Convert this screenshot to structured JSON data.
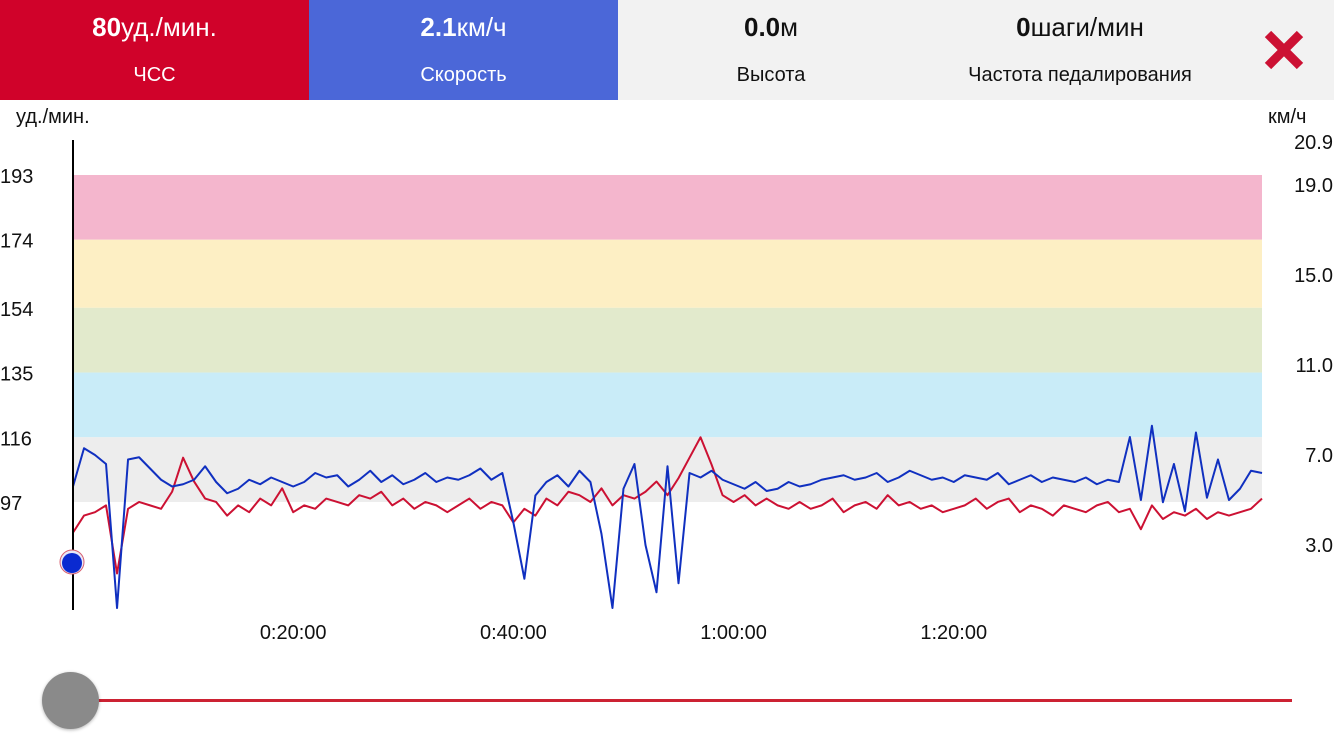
{
  "header": {
    "hr": {
      "value": "80",
      "unit": "уд./мин.",
      "label": "ЧСС",
      "color": "#d0022a"
    },
    "speed": {
      "value": "2.1",
      "unit": "км/ч",
      "label": "Скорость",
      "color": "#4b67d8"
    },
    "altitude": {
      "value": "0.0",
      "unit": "м",
      "label": "Высота"
    },
    "cadence": {
      "value": "0",
      "unit": "шаги/мин",
      "label": "Частота педалирования"
    },
    "close_icon": "close-x-icon"
  },
  "chart_data": {
    "type": "line",
    "left_axis": {
      "label": "уд./мин.",
      "ticks": [
        "193",
        "174",
        "154",
        "135",
        "116",
        "97"
      ],
      "range": [
        60,
        206
      ]
    },
    "right_axis": {
      "label": "км/ч",
      "ticks": [
        "20.9",
        "19.0",
        "15.0",
        "11.0",
        "7.0",
        "3.0"
      ],
      "range": [
        0,
        21
      ]
    },
    "x_ticks": [
      "0:20:00",
      "0:40:00",
      "1:00:00",
      "1:20:00"
    ],
    "x_range_min": [
      0,
      108
    ],
    "zones": [
      {
        "from": 174,
        "to": 193,
        "color": "#f4b6cd"
      },
      {
        "from": 154,
        "to": 174,
        "color": "#fdefc4"
      },
      {
        "from": 135,
        "to": 154,
        "color": "#e2eacc"
      },
      {
        "from": 116,
        "to": 135,
        "color": "#c9ecf8"
      },
      {
        "from": 97,
        "to": 116,
        "color": "#ededed"
      }
    ],
    "series": [
      {
        "name": "ЧСС",
        "color": "#cc1133",
        "values": [
          88,
          93,
          94,
          96,
          76,
          95,
          97,
          96,
          95,
          100,
          110,
          103,
          98,
          97,
          93,
          96,
          94,
          98,
          96,
          101,
          94,
          96,
          95,
          98,
          97,
          96,
          99,
          98,
          100,
          96,
          98,
          95,
          97,
          96,
          94,
          96,
          98,
          95,
          97,
          96,
          91,
          95,
          93,
          98,
          96,
          100,
          99,
          97,
          101,
          96,
          99,
          98,
          100,
          103,
          99,
          104,
          110,
          116,
          108,
          99,
          97,
          99,
          96,
          98,
          96,
          95,
          97,
          95,
          96,
          98,
          94,
          96,
          97,
          95,
          99,
          96,
          97,
          95,
          96,
          94,
          95,
          96,
          98,
          95,
          97,
          98,
          94,
          96,
          95,
          93,
          96,
          95,
          94,
          96,
          97,
          94,
          95,
          89,
          96,
          92,
          94,
          93,
          95,
          92,
          94,
          93,
          94,
          95,
          98
        ]
      },
      {
        "name": "Скорость",
        "color": "#1030c0",
        "values": [
          5.6,
          7.3,
          7.0,
          6.6,
          0.2,
          6.8,
          6.9,
          6.4,
          5.9,
          5.6,
          5.7,
          5.9,
          6.5,
          5.8,
          5.3,
          5.5,
          5.9,
          5.7,
          6.0,
          5.8,
          5.6,
          5.8,
          6.2,
          6.0,
          6.1,
          5.6,
          5.9,
          6.3,
          5.8,
          6.1,
          5.7,
          5.9,
          6.2,
          5.8,
          6.0,
          5.9,
          6.1,
          6.4,
          5.9,
          6.2,
          4.0,
          1.5,
          5.2,
          5.8,
          6.1,
          5.6,
          6.3,
          5.8,
          3.5,
          0.2,
          5.5,
          6.6,
          3.0,
          0.9,
          6.5,
          1.3,
          6.2,
          6.0,
          6.3,
          5.9,
          5.7,
          5.5,
          5.8,
          5.4,
          5.5,
          5.8,
          5.6,
          5.7,
          5.9,
          6.0,
          6.1,
          5.9,
          6.0,
          6.2,
          5.8,
          6.0,
          6.3,
          6.1,
          5.9,
          6.0,
          5.8,
          6.1,
          6.0,
          5.9,
          6.2,
          5.7,
          5.9,
          6.1,
          5.8,
          6.0,
          5.9,
          5.8,
          6.0,
          5.7,
          5.9,
          5.8,
          7.8,
          5.0,
          8.3,
          4.9,
          6.6,
          4.5,
          8.0,
          5.1,
          6.8,
          5.0,
          5.5,
          6.3,
          6.2
        ]
      }
    ]
  },
  "slider": {
    "position": 0
  }
}
